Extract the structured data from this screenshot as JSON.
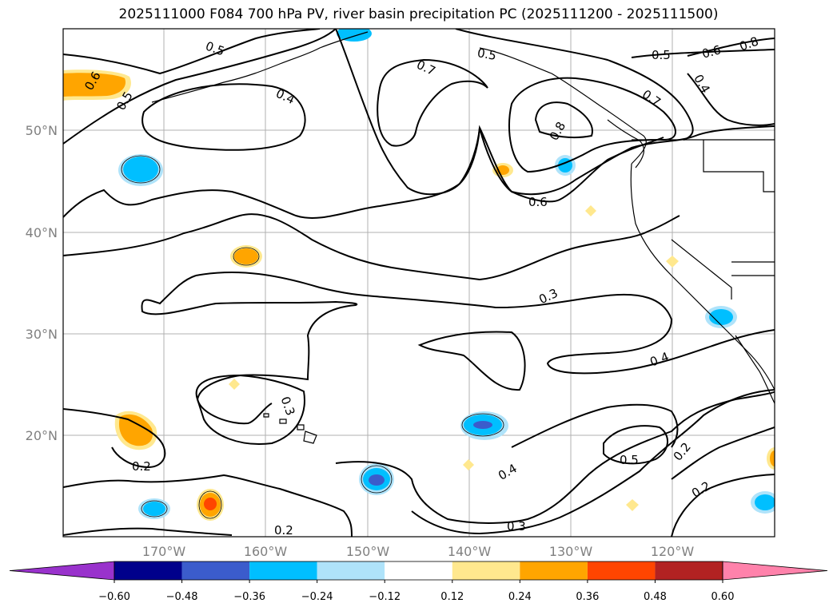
{
  "title": "2025111000 F084 700 hPa PV, river basin precipitation PC (2025111200 - 2025111500)",
  "lat_labels": [
    "50°N",
    "40°N",
    "30°N",
    "20°N"
  ],
  "lon_labels": [
    "170°W",
    "160°W",
    "150°W",
    "140°W",
    "130°W",
    "120°W"
  ],
  "contour_labels": {
    "c05_nw": "0.5",
    "c04_nw": "0.4",
    "c06_nw": "0.6",
    "c05_w": "0.5",
    "c07_n": "0.7",
    "c05_n": "0.5",
    "c08_n": "0.8",
    "c07_ne": "0.7",
    "c05_ne": "0.5",
    "c06_ne": "0.6",
    "c08_ne": "0.8",
    "c04_ne": "0.4",
    "c06_c": "0.6",
    "c03_c": "0.3",
    "c04_e": "0.4",
    "c03_sw": "0.3",
    "c02_w": "0.2",
    "c02_s": "0.2",
    "c04_s": "0.4",
    "c03_s": "0.3",
    "c05_se": "0.5",
    "c02_se": "0.2",
    "c02_se2": "0.2"
  },
  "colorbar": {
    "ticks": [
      "−0.60",
      "−0.48",
      "−0.36",
      "−0.24",
      "−0.12",
      "0.12",
      "0.24",
      "0.36",
      "0.48",
      "0.60"
    ],
    "colors": [
      "#9932cc",
      "#00008b",
      "#3b5ccc",
      "#00bfff",
      "#afe3fa",
      "#ffffff",
      "#ffe88e",
      "#ffa500",
      "#ff4500",
      "#b22222",
      "#ff82ab"
    ]
  },
  "colors": {
    "neg_0_12": "#afe3fa",
    "neg_0_24": "#00bfff",
    "neg_0_36": "#3b5ccc",
    "pos_0_12": "#ffe88e",
    "pos_0_24": "#ffa500",
    "pos_0_36": "#ff4500",
    "grid": "#b0b0b0"
  }
}
